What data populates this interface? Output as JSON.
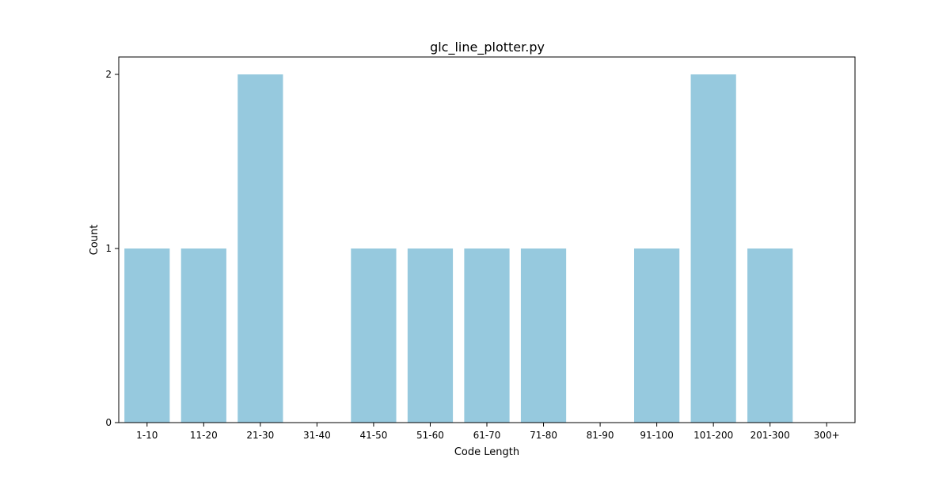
{
  "chart_data": {
    "type": "bar",
    "title": "glc_line_plotter.py",
    "xlabel": "Code Length",
    "ylabel": "Count",
    "categories": [
      "1-10",
      "11-20",
      "21-30",
      "31-40",
      "41-50",
      "51-60",
      "61-70",
      "71-80",
      "81-90",
      "91-100",
      "101-200",
      "201-300",
      "300+"
    ],
    "values": [
      1,
      1,
      2,
      0,
      1,
      1,
      1,
      1,
      0,
      1,
      2,
      1,
      0
    ],
    "ylim": [
      0,
      2.1
    ],
    "yticks": [
      0,
      1,
      2
    ],
    "grid": false,
    "legend": "none",
    "bar_color": "#96c9de"
  }
}
